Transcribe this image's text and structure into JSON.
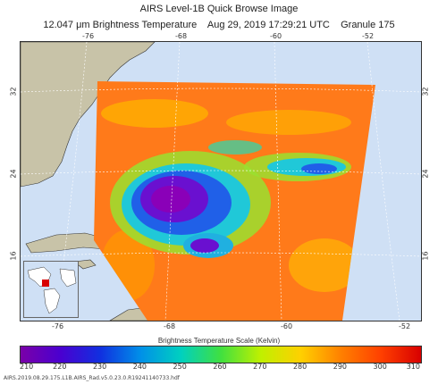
{
  "title": "AIRS Level-1B Quick Browse Image",
  "subtitle": {
    "wavelength": "12.047",
    "unit": "μm",
    "product": "Brightness Temperature",
    "date": "Aug 29, 2019",
    "time": "17:29:21 UTC",
    "granule": "Granule 175"
  },
  "lon_labels_top": [
    "-76",
    "-68",
    "-60",
    "-52"
  ],
  "lon_labels_bottom": [
    "-76",
    "-68",
    "-60",
    "-52"
  ],
  "lat_labels_left": [
    "32",
    "24",
    "16"
  ],
  "lat_labels_right": [
    "32",
    "24",
    "16"
  ],
  "colorbar": {
    "title": "Brightness Temperature Scale (Kelvin)",
    "ticks": [
      "210",
      "220",
      "230",
      "240",
      "250",
      "260",
      "270",
      "280",
      "290",
      "300",
      "310"
    ],
    "colors": [
      "#7a00a8",
      "#4a00d0",
      "#1030e0",
      "#0090e8",
      "#00d0c0",
      "#40e040",
      "#c0f000",
      "#ffd000",
      "#ff8000",
      "#ff4000",
      "#d80000"
    ]
  },
  "footer": "AIRS.2019.08.29.175.L1B.AIRS_Rad.v5.0.23.0.R19241140733.hdf",
  "colors": {
    "land": "#c8c3a8",
    "ocean": "#cfe0f5",
    "warm": "#ff7a1a",
    "grid": "#ffffff"
  }
}
